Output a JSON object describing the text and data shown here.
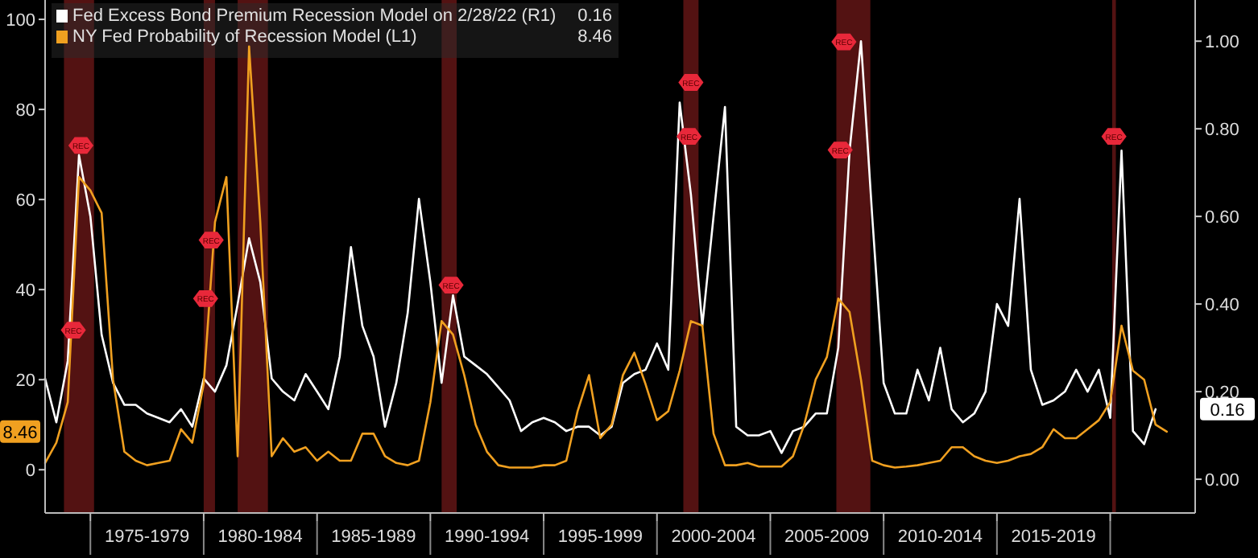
{
  "chart_data": {
    "type": "line",
    "legend": "top left",
    "x": [
      "1973-01",
      "1973-07",
      "1974-01",
      "1974-07",
      "1975-01",
      "1975-07",
      "1976-01",
      "1976-07",
      "1977-01",
      "1977-07",
      "1978-01",
      "1978-07",
      "1979-01",
      "1979-07",
      "1980-01",
      "1980-07",
      "1981-01",
      "1981-07",
      "1982-01",
      "1982-07",
      "1983-01",
      "1983-07",
      "1984-01",
      "1984-07",
      "1985-01",
      "1985-07",
      "1986-01",
      "1986-07",
      "1987-01",
      "1987-07",
      "1988-01",
      "1988-07",
      "1989-01",
      "1989-07",
      "1990-01",
      "1990-07",
      "1991-01",
      "1991-07",
      "1992-01",
      "1992-07",
      "1993-01",
      "1993-07",
      "1994-01",
      "1994-07",
      "1995-01",
      "1995-07",
      "1996-01",
      "1996-07",
      "1997-01",
      "1997-07",
      "1998-01",
      "1998-07",
      "1999-01",
      "1999-07",
      "2000-01",
      "2000-07",
      "2001-01",
      "2001-07",
      "2002-01",
      "2002-07",
      "2003-01",
      "2003-07",
      "2004-01",
      "2004-07",
      "2005-01",
      "2005-07",
      "2006-01",
      "2006-07",
      "2007-01",
      "2007-07",
      "2008-01",
      "2008-07",
      "2009-01",
      "2009-07",
      "2010-01",
      "2010-07",
      "2011-01",
      "2011-07",
      "2012-01",
      "2012-07",
      "2013-01",
      "2013-07",
      "2014-01",
      "2014-07",
      "2015-01",
      "2015-07",
      "2016-01",
      "2016-07",
      "2017-01",
      "2017-07",
      "2018-01",
      "2018-07",
      "2019-01",
      "2019-07",
      "2020-01",
      "2020-07",
      "2021-01",
      "2021-07",
      "2022-01",
      "2022-07"
    ],
    "xlim": [
      "1973-01",
      "2023-10"
    ],
    "xticks": [
      {
        "value": "1975-01",
        "label": null
      },
      {
        "value": "1977-07",
        "label": "1975-1979"
      },
      {
        "value": "1980-01",
        "label": null
      },
      {
        "value": "1982-07",
        "label": "1980-1984"
      },
      {
        "value": "1985-01",
        "label": null
      },
      {
        "value": "1987-07",
        "label": "1985-1989"
      },
      {
        "value": "1990-01",
        "label": null
      },
      {
        "value": "1992-07",
        "label": "1990-1994"
      },
      {
        "value": "1995-01",
        "label": null
      },
      {
        "value": "1997-07",
        "label": "1995-1999"
      },
      {
        "value": "2000-01",
        "label": null
      },
      {
        "value": "2002-07",
        "label": "2000-2004"
      },
      {
        "value": "2005-01",
        "label": null
      },
      {
        "value": "2007-07",
        "label": "2005-2009"
      },
      {
        "value": "2010-01",
        "label": null
      },
      {
        "value": "2012-07",
        "label": "2010-2014"
      },
      {
        "value": "2015-01",
        "label": null
      },
      {
        "value": "2017-07",
        "label": "2015-2019"
      },
      {
        "value": "2020-01",
        "label": null
      }
    ],
    "ylim": [
      -9.6,
      104.3
    ],
    "yticks": [
      0,
      20,
      40,
      60,
      80,
      100
    ],
    "y2lim": [
      -0.077,
      1.094
    ],
    "y2ticks": [
      {
        "value": 0,
        "label": "0.00"
      },
      {
        "value": 0.2,
        "label": "0.20"
      },
      {
        "value": 0.4,
        "label": "0.40"
      },
      {
        "value": 0.6,
        "label": "0.60"
      },
      {
        "value": 0.8,
        "label": "0.80"
      },
      {
        "value": 1,
        "label": "1.00"
      }
    ],
    "bands": [
      {
        "axis": "x",
        "from": "1973-11",
        "to": "1975-03",
        "color": "#5c1414"
      },
      {
        "axis": "x",
        "from": "1980-01",
        "to": "1980-07",
        "color": "#5c1414"
      },
      {
        "axis": "x",
        "from": "1981-07",
        "to": "1982-11",
        "color": "#5c1414"
      },
      {
        "axis": "x",
        "from": "1990-07",
        "to": "1991-03",
        "color": "#5c1414"
      },
      {
        "axis": "x",
        "from": "2001-03",
        "to": "2001-11",
        "color": "#5c1414"
      },
      {
        "axis": "x",
        "from": "2007-12",
        "to": "2009-06",
        "color": "#5c1414"
      },
      {
        "axis": "x",
        "from": "2020-02",
        "to": "2020-04",
        "color": "#5c1414"
      }
    ],
    "annotations": [
      {
        "text": "REC",
        "x": "1974-04",
        "y": 31
      },
      {
        "text": "REC",
        "x": "1974-08",
        "y": 72
      },
      {
        "text": "REC",
        "x": "1980-05",
        "y": 51
      },
      {
        "text": "REC",
        "x": "1980-02",
        "y": 38
      },
      {
        "text": "REC",
        "x": "1990-12",
        "y": 41
      },
      {
        "text": "REC",
        "x": "2001-07",
        "y": 86
      },
      {
        "text": "REC",
        "x": "2001-06",
        "y": 74
      },
      {
        "text": "REC",
        "x": "2008-04",
        "y": 95
      },
      {
        "text": "REC",
        "x": "2008-02",
        "y": 71
      },
      {
        "text": "REC",
        "x": "2020-03",
        "y": 74
      },
      "0.16",
      "8.46",
      "0.16",
      "8.46"
    ],
    "series": [
      {
        "name": "Fed Excess Bond Premium Recession Model on 2/28/22 (R1)",
        "color": "#ffffff",
        "axis": "y2",
        "values": [
          0.23,
          0.13,
          0.27,
          0.74,
          0.6,
          0.33,
          0.22,
          0.17,
          0.17,
          0.15,
          0.14,
          0.13,
          0.16,
          0.12,
          0.23,
          0.2,
          0.26,
          0.4,
          0.55,
          0.45,
          0.23,
          0.2,
          0.18,
          0.24,
          0.2,
          0.16,
          0.28,
          0.53,
          0.35,
          0.28,
          0.12,
          0.22,
          0.38,
          0.64,
          0.45,
          0.22,
          0.42,
          0.28,
          0.26,
          0.24,
          0.21,
          0.18,
          0.11,
          0.13,
          0.14,
          0.13,
          0.11,
          0.12,
          0.12,
          0.1,
          0.12,
          0.22,
          0.24,
          0.25,
          0.31,
          0.25,
          0.86,
          0.65,
          0.35,
          0.6,
          0.85,
          0.12,
          0.1,
          0.1,
          0.11,
          0.06,
          0.11,
          0.12,
          0.15,
          0.15,
          0.3,
          0.75,
          1.0,
          0.6,
          0.22,
          0.15,
          0.15,
          0.25,
          0.18,
          0.3,
          0.16,
          0.13,
          0.15,
          0.2,
          0.4,
          0.35,
          0.64,
          0.25,
          0.17,
          0.18,
          0.2,
          0.25,
          0.2,
          0.25,
          0.14,
          0.75,
          0.11,
          0.08,
          0.16,
          null
        ]
      },
      {
        "name": "NY Fed Probability of Recession Model (L1)",
        "color": "#f0a020",
        "values": [
          1.5,
          6,
          15,
          65,
          62,
          57,
          20,
          4,
          2,
          1,
          1.5,
          2,
          9,
          6,
          19,
          55,
          65,
          3,
          94,
          55,
          3,
          7,
          4,
          5,
          2,
          4,
          2,
          2,
          8,
          8,
          3,
          1.5,
          1,
          2,
          15,
          33,
          30,
          21,
          10,
          4,
          1,
          0.5,
          0.5,
          0.5,
          1,
          1,
          2,
          13,
          21,
          7,
          10,
          21,
          26,
          19,
          11,
          13,
          22,
          33,
          32,
          8,
          1,
          1,
          1.5,
          0.7,
          0.7,
          0.7,
          3,
          10,
          20,
          25,
          38,
          35,
          20,
          2,
          1,
          0.5,
          0.7,
          1,
          1.5,
          2,
          5,
          5,
          3,
          2,
          1.5,
          2,
          3,
          3.5,
          5,
          9,
          7,
          7,
          9,
          11,
          15,
          32,
          22,
          20,
          10,
          8.46
        ]
      }
    ]
  }
}
